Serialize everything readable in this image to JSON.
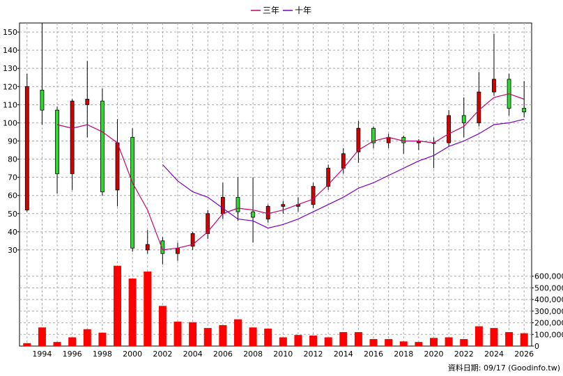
{
  "chart_data": {
    "type": "candlestick",
    "legend": [
      {
        "name": "三年",
        "color": "#c8006e"
      },
      {
        "name": "十年",
        "color": "#7a00c8"
      }
    ],
    "footer": "資料日期: 09/17  (Goodinfo.tw)",
    "colors": {
      "up": "#d40000",
      "down": "#2fd82f",
      "volume": "#ff0000"
    },
    "price_axis": {
      "min": 20,
      "max": 155,
      "ticks": [
        30,
        40,
        50,
        60,
        70,
        80,
        90,
        100,
        110,
        120,
        130,
        140,
        150
      ]
    },
    "volume_axis": {
      "min": 0,
      "max": 700000,
      "ticks": [
        0,
        100000,
        200000,
        300000,
        400000,
        500000,
        600000
      ],
      "tick_labels": [
        "0",
        "100,000",
        "200,000",
        "300,000",
        "400,000",
        "500,000",
        "600,000"
      ]
    },
    "x_axis": {
      "min": 1992.5,
      "max": 2026.5,
      "tick_labels": [
        "1994",
        "1996",
        "1998",
        "2000",
        "2002",
        "2004",
        "2006",
        "2008",
        "2010",
        "2012",
        "2014",
        "2016",
        "2018",
        "2020",
        "2022",
        "2024",
        "2026"
      ],
      "ticks": [
        1994,
        1996,
        1998,
        2000,
        2002,
        2004,
        2006,
        2008,
        2010,
        2012,
        2014,
        2016,
        2018,
        2020,
        2022,
        2024,
        2026
      ]
    },
    "candles": [
      {
        "year": 1993,
        "open": 52,
        "high": 127,
        "low": 51,
        "close": 120,
        "volume": 25000
      },
      {
        "year": 1994,
        "open": 118,
        "high": 155,
        "low": 99,
        "close": 107,
        "volume": 160000
      },
      {
        "year": 1995,
        "open": 107,
        "high": 109,
        "low": 61,
        "close": 72,
        "volume": 35000
      },
      {
        "year": 1996,
        "open": 72,
        "high": 113,
        "low": 63,
        "close": 112,
        "volume": 75000
      },
      {
        "year": 1997,
        "open": 110,
        "high": 134,
        "low": 92,
        "close": 113,
        "volume": 145000
      },
      {
        "year": 1998,
        "open": 112,
        "high": 119,
        "low": 60,
        "close": 62,
        "volume": 115000
      },
      {
        "year": 1999,
        "open": 63,
        "high": 102,
        "low": 54,
        "close": 89,
        "volume": 690000
      },
      {
        "year": 2000,
        "open": 92,
        "high": 97,
        "low": 29,
        "close": 31,
        "volume": 580000
      },
      {
        "year": 2001,
        "open": 30,
        "high": 41,
        "low": 28,
        "close": 33,
        "volume": 640000
      },
      {
        "year": 2002,
        "open": 35,
        "high": 37,
        "low": 22,
        "close": 28,
        "volume": 345000
      },
      {
        "year": 2003,
        "open": 28,
        "high": 34,
        "low": 24,
        "close": 31,
        "volume": 210000
      },
      {
        "year": 2004,
        "open": 32,
        "high": 40,
        "low": 30,
        "close": 39,
        "volume": 205000
      },
      {
        "year": 2005,
        "open": 39,
        "high": 52,
        "low": 36,
        "close": 50,
        "volume": 155000
      },
      {
        "year": 2006,
        "open": 50,
        "high": 67,
        "low": 47,
        "close": 59,
        "volume": 180000
      },
      {
        "year": 2007,
        "open": 59,
        "high": 70,
        "low": 46,
        "close": 51,
        "volume": 230000
      },
      {
        "year": 2008,
        "open": 51,
        "high": 70,
        "low": 34,
        "close": 48,
        "volume": 160000
      },
      {
        "year": 2009,
        "open": 47,
        "high": 55,
        "low": 45,
        "close": 54,
        "volume": 150000
      },
      {
        "year": 2010,
        "open": 54,
        "high": 57,
        "low": 50,
        "close": 55,
        "volume": 75000
      },
      {
        "year": 2011,
        "open": 54,
        "high": 59,
        "low": 51,
        "close": 55,
        "volume": 95000
      },
      {
        "year": 2012,
        "open": 55,
        "high": 67,
        "low": 53,
        "close": 65,
        "volume": 90000
      },
      {
        "year": 2013,
        "open": 65,
        "high": 77,
        "low": 63,
        "close": 75,
        "volume": 75000
      },
      {
        "year": 2014,
        "open": 75,
        "high": 86,
        "low": 72,
        "close": 83,
        "volume": 120000
      },
      {
        "year": 2015,
        "open": 84,
        "high": 101,
        "low": 78,
        "close": 97,
        "volume": 120000
      },
      {
        "year": 2016,
        "open": 97,
        "high": 98,
        "low": 86,
        "close": 89,
        "volume": 60000
      },
      {
        "year": 2017,
        "open": 89,
        "high": 94,
        "low": 86,
        "close": 92,
        "volume": 60000
      },
      {
        "year": 2018,
        "open": 92,
        "high": 93,
        "low": 83,
        "close": 89,
        "volume": 40000
      },
      {
        "year": 2019,
        "open": 89,
        "high": 91,
        "low": 85,
        "close": 90,
        "volume": 35000
      },
      {
        "year": 2020,
        "open": 89,
        "high": 92,
        "low": 75,
        "close": 89,
        "volume": 70000
      },
      {
        "year": 2021,
        "open": 89,
        "high": 107,
        "low": 87,
        "close": 104,
        "volume": 75000
      },
      {
        "year": 2022,
        "open": 104,
        "high": 114,
        "low": 92,
        "close": 100,
        "volume": 60000
      },
      {
        "year": 2023,
        "open": 100,
        "high": 128,
        "low": 98,
        "close": 117,
        "volume": 170000
      },
      {
        "year": 2024,
        "open": 117,
        "high": 149,
        "low": 115,
        "close": 124,
        "volume": 155000
      },
      {
        "year": 2025,
        "open": 124,
        "high": 127,
        "low": 104,
        "close": 108,
        "volume": 120000
      },
      {
        "year": 2026,
        "open": 108,
        "high": 123,
        "low": 103,
        "close": 106,
        "volume": 110000
      }
    ],
    "series": [
      {
        "name": "三年",
        "points": [
          [
            1995,
            99
          ],
          [
            1996,
            97
          ],
          [
            1997,
            99
          ],
          [
            1998,
            95
          ],
          [
            1999,
            89
          ],
          [
            2000,
            67
          ],
          [
            2001,
            52
          ],
          [
            2002,
            30
          ],
          [
            2003,
            31
          ],
          [
            2004,
            33
          ],
          [
            2005,
            40
          ],
          [
            2006,
            50
          ],
          [
            2007,
            53
          ],
          [
            2008,
            52
          ],
          [
            2009,
            50
          ],
          [
            2010,
            52
          ],
          [
            2011,
            55
          ],
          [
            2012,
            58
          ],
          [
            2013,
            66
          ],
          [
            2014,
            75
          ],
          [
            2015,
            85
          ],
          [
            2016,
            90
          ],
          [
            2017,
            92
          ],
          [
            2018,
            90
          ],
          [
            2019,
            90
          ],
          [
            2020,
            89
          ],
          [
            2021,
            94
          ],
          [
            2022,
            98
          ],
          [
            2023,
            107
          ],
          [
            2024,
            114
          ],
          [
            2025,
            116
          ],
          [
            2026,
            113
          ]
        ]
      },
      {
        "name": "十年",
        "points": [
          [
            2002,
            77
          ],
          [
            2003,
            68
          ],
          [
            2004,
            62
          ],
          [
            2005,
            59
          ],
          [
            2006,
            53
          ],
          [
            2007,
            47
          ],
          [
            2008,
            46
          ],
          [
            2009,
            42
          ],
          [
            2010,
            44
          ],
          [
            2011,
            47
          ],
          [
            2012,
            51
          ],
          [
            2013,
            55
          ],
          [
            2014,
            59
          ],
          [
            2015,
            64
          ],
          [
            2016,
            67
          ],
          [
            2017,
            71
          ],
          [
            2018,
            75
          ],
          [
            2019,
            79
          ],
          [
            2020,
            82
          ],
          [
            2021,
            87
          ],
          [
            2022,
            90
          ],
          [
            2023,
            94
          ],
          [
            2024,
            99
          ],
          [
            2025,
            100
          ],
          [
            2026,
            102
          ]
        ]
      }
    ]
  }
}
